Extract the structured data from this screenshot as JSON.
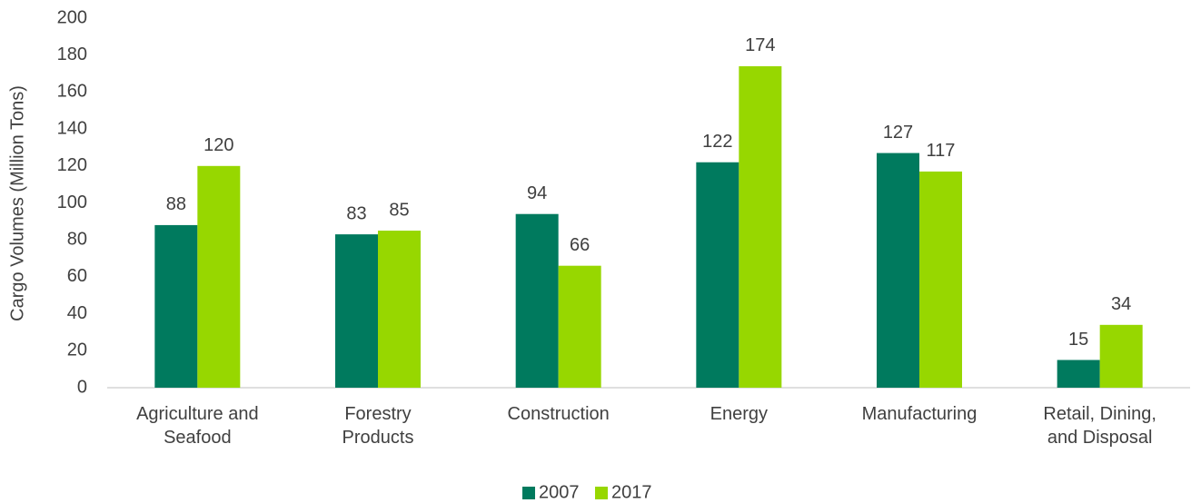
{
  "chart_data": {
    "type": "bar",
    "ylabel": "Cargo Volumes (Million Tons)",
    "categories": [
      "Agriculture and\nSeafood",
      "Forestry\nProducts",
      "Construction",
      "Energy",
      "Manufacturing",
      "Retail, Dining,\nand Disposal"
    ],
    "series": [
      {
        "name": "2007",
        "color": "#007a5e",
        "values": [
          88,
          83,
          94,
          122,
          127,
          15
        ]
      },
      {
        "name": "2017",
        "color": "#97d700",
        "values": [
          120,
          85,
          66,
          174,
          117,
          34
        ]
      }
    ],
    "ylim": [
      0,
      200
    ],
    "yticks": [
      0,
      20,
      40,
      60,
      80,
      100,
      120,
      140,
      160,
      180,
      200
    ],
    "grid": false,
    "legend": "bottom"
  }
}
